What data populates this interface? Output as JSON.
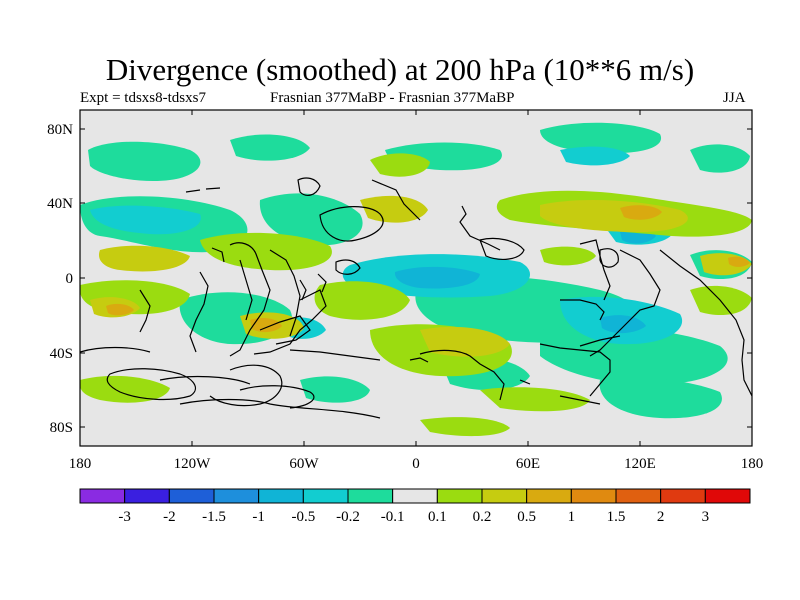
{
  "title": "Divergence (smoothed) at 200 hPa (10**6 m/s)",
  "subtitle_left": "Expt = tdsxs8-tdsxs7",
  "subtitle_center": "Frasnian 377MaBP - Frasnian 377MaBP",
  "subtitle_right": "JJA",
  "map": {
    "lon_ticks": [
      "180",
      "120W",
      "60W",
      "0",
      "60E",
      "120E",
      "180"
    ],
    "lat_ticks": [
      "80N",
      "40N",
      "0",
      "40S",
      "80S"
    ],
    "background_color": "#e6e6e6"
  },
  "colorbar": {
    "labels": [
      "-3",
      "-2",
      "-1.5",
      "-1",
      "-0.5",
      "-0.2",
      "-0.1",
      "0.1",
      "0.2",
      "0.5",
      "1",
      "1.5",
      "2",
      "3"
    ],
    "colors": [
      "#8a2be2",
      "#3a1fe0",
      "#1e5fd8",
      "#1e8fdc",
      "#10b4d6",
      "#12cdd0",
      "#1edc9c",
      "#e6e6e6",
      "#9bdc10",
      "#c6cc10",
      "#d9aa10",
      "#e08a10",
      "#e06010",
      "#e03a10",
      "#e00808"
    ]
  },
  "field_colors": {
    "neg_weak": "#1edc9c",
    "neg_mid": "#12cdd0",
    "neg_strong": "#10b4d6",
    "pos_weak": "#9bdc10",
    "pos_mid": "#c6cc10",
    "pos_strong": "#d9aa10"
  }
}
